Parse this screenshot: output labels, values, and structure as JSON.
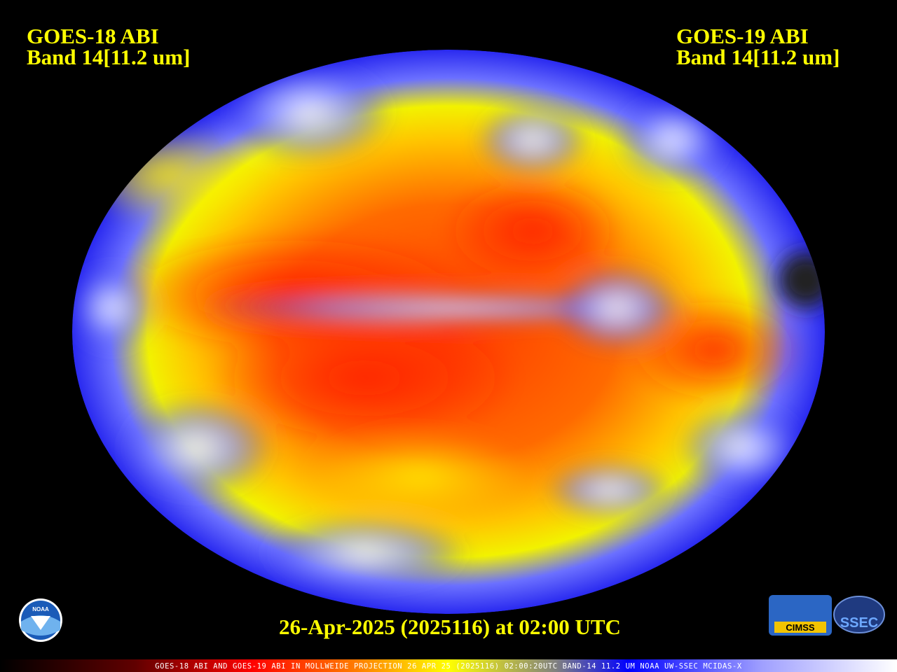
{
  "header": {
    "left": {
      "line1": "GOES-18 ABI",
      "line2": "Band 14[11.2 um]"
    },
    "right": {
      "line1": "GOES-19 ABI",
      "line2": "Band 14[11.2 um]"
    }
  },
  "timestamp": "26-Apr-2025 (2025116) at 02:00 UTC",
  "footer": "GOES-18 ABI AND GOES-19 ABI IN MOLLWEIDE PROJECTION 26 APR 25 (2025116) 02:00:20UTC BAND-14 11.2 UM NOAA UW-SSEC MCIDAS-X",
  "logos": {
    "noaa": "NOAA",
    "cimss": "CIMSS",
    "ssec": "SSEC"
  }
}
